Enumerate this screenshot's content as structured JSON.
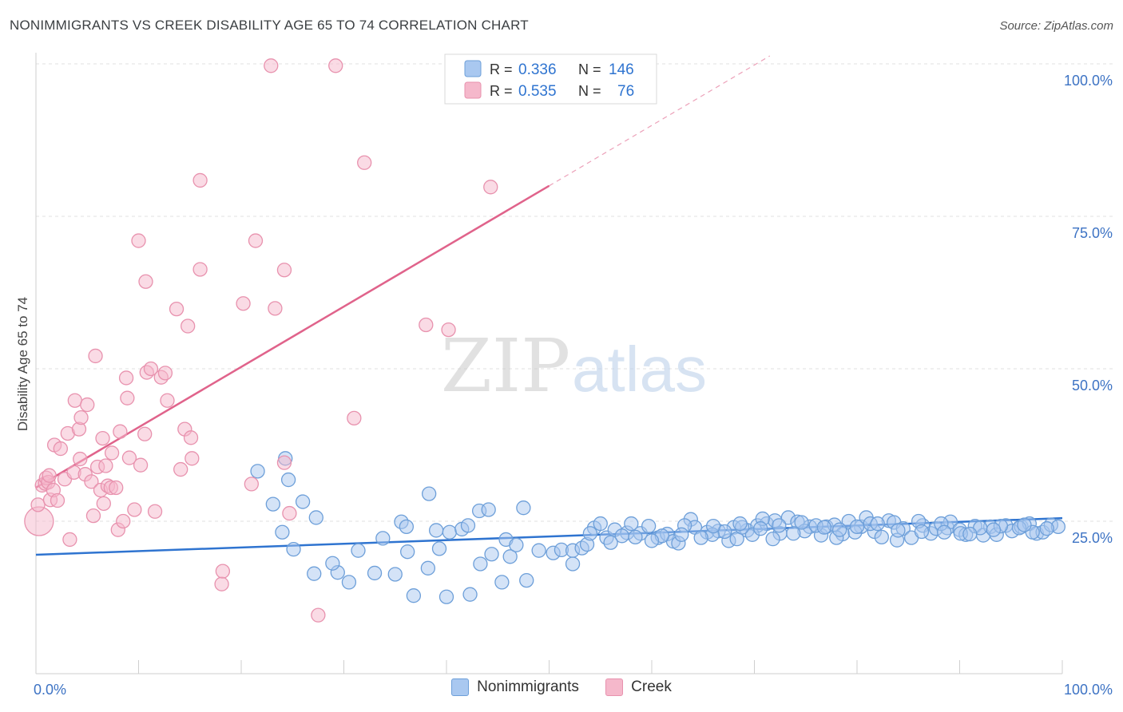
{
  "header": {
    "title": "NONIMMIGRANTS VS CREEK DISABILITY AGE 65 TO 74 CORRELATION CHART",
    "source": "Source: ZipAtlas.com"
  },
  "watermark": {
    "zip": "ZIP",
    "atlas": "atlas"
  },
  "colors": {
    "blue_fill": "#a9c8f0",
    "blue_stroke": "#6d9fd9",
    "blue_line": "#2f74d0",
    "pink_fill": "#f5b8cb",
    "pink_stroke": "#e892ae",
    "pink_line": "#e0638b",
    "axis_text": "#3d73c4",
    "grid": "#e2e2e2"
  },
  "legend_top": {
    "rows": [
      {
        "r_label": "R =",
        "r_value": "0.336",
        "n_label": "N =",
        "n_value": "146"
      },
      {
        "r_label": "R =",
        "r_value": "0.535",
        "n_label": "N =",
        "n_value": "76"
      }
    ]
  },
  "legend_bottom": {
    "items": [
      "Nonimmigrants",
      "Creek"
    ]
  },
  "chart_data": {
    "type": "scatter",
    "title": "NONIMMIGRANTS VS CREEK DISABILITY AGE 65 TO 74 CORRELATION CHART",
    "xlabel": "",
    "ylabel": "Disability Age 65 to 74",
    "xlim": [
      0,
      100
    ],
    "ylim": [
      0,
      100
    ],
    "x_tick_labels": [
      "0.0%",
      "100.0%"
    ],
    "y_tick_labels": [
      "25.0%",
      "50.0%",
      "75.0%",
      "100.0%"
    ],
    "y_ticks": [
      25,
      50,
      75,
      100
    ],
    "grid": true,
    "legend_position": "top-center",
    "series": [
      {
        "name": "Nonimmigrants",
        "r": 0.336,
        "n": 146,
        "trend": {
          "x": [
            0,
            100
          ],
          "y": [
            19.5,
            25.5
          ]
        },
        "points": [
          [
            21.6,
            33.2
          ],
          [
            24.3,
            35.3
          ],
          [
            23.1,
            27.8
          ],
          [
            24.6,
            31.8
          ],
          [
            26.0,
            28.2
          ],
          [
            27.3,
            25.6
          ],
          [
            24.0,
            23.2
          ],
          [
            25.1,
            20.4
          ],
          [
            27.1,
            16.4
          ],
          [
            29.4,
            16.6
          ],
          [
            30.5,
            15.0
          ],
          [
            28.9,
            18.1
          ],
          [
            31.4,
            20.2
          ],
          [
            33.0,
            16.5
          ],
          [
            35.0,
            16.3
          ],
          [
            36.8,
            12.8
          ],
          [
            36.2,
            20.0
          ],
          [
            38.2,
            17.3
          ],
          [
            39.3,
            20.5
          ],
          [
            40.0,
            12.6
          ],
          [
            42.3,
            13.0
          ],
          [
            43.3,
            18.0
          ],
          [
            44.4,
            19.6
          ],
          [
            45.4,
            15.0
          ],
          [
            46.2,
            19.2
          ],
          [
            47.8,
            15.3
          ],
          [
            33.8,
            22.2
          ],
          [
            35.6,
            24.9
          ],
          [
            36.1,
            24.1
          ],
          [
            38.3,
            29.5
          ],
          [
            39.0,
            23.5
          ],
          [
            40.3,
            23.2
          ],
          [
            41.5,
            23.7
          ],
          [
            42.1,
            24.3
          ],
          [
            43.2,
            26.7
          ],
          [
            44.1,
            26.9
          ],
          [
            45.8,
            22.0
          ],
          [
            46.8,
            21.1
          ],
          [
            47.5,
            27.2
          ],
          [
            49.0,
            20.2
          ],
          [
            50.4,
            19.8
          ],
          [
            51.2,
            20.3
          ],
          [
            52.3,
            20.2
          ],
          [
            53.2,
            20.6
          ],
          [
            52.3,
            18.0
          ],
          [
            53.7,
            21.2
          ],
          [
            54.4,
            23.9
          ],
          [
            55.6,
            22.3
          ],
          [
            56.4,
            23.6
          ],
          [
            57.6,
            23.1
          ],
          [
            58.0,
            24.6
          ],
          [
            58.9,
            23.0
          ],
          [
            60.6,
            22.3
          ],
          [
            61.5,
            22.9
          ],
          [
            62.1,
            21.7
          ],
          [
            62.6,
            21.4
          ],
          [
            63.8,
            25.3
          ],
          [
            64.2,
            24.0
          ],
          [
            65.4,
            23.2
          ],
          [
            66.5,
            23.4
          ],
          [
            67.5,
            21.8
          ],
          [
            68.0,
            24.0
          ],
          [
            68.3,
            22.1
          ],
          [
            69.3,
            23.5
          ],
          [
            70.3,
            24.3
          ],
          [
            71.2,
            24.6
          ],
          [
            72.0,
            25.1
          ],
          [
            72.5,
            23.0
          ],
          [
            73.3,
            25.6
          ],
          [
            74.2,
            24.9
          ],
          [
            75.4,
            24.1
          ],
          [
            76.5,
            22.7
          ],
          [
            77.0,
            24.1
          ],
          [
            77.8,
            24.4
          ],
          [
            78.6,
            22.9
          ],
          [
            79.2,
            25.0
          ],
          [
            80.4,
            24.1
          ],
          [
            80.9,
            25.6
          ],
          [
            81.7,
            23.3
          ],
          [
            82.4,
            22.4
          ],
          [
            83.1,
            25.1
          ],
          [
            83.6,
            24.8
          ],
          [
            84.5,
            23.8
          ],
          [
            85.3,
            22.3
          ],
          [
            86.4,
            24.3
          ],
          [
            87.2,
            23.0
          ],
          [
            87.7,
            23.8
          ],
          [
            88.8,
            23.9
          ],
          [
            89.1,
            24.9
          ],
          [
            90.0,
            23.6
          ],
          [
            90.6,
            22.8
          ],
          [
            91.5,
            24.2
          ],
          [
            92.3,
            22.7
          ],
          [
            93.0,
            24.1
          ],
          [
            93.6,
            22.8
          ],
          [
            94.5,
            24.3
          ],
          [
            95.1,
            23.4
          ],
          [
            96.0,
            24.1
          ],
          [
            96.8,
            24.6
          ],
          [
            97.5,
            23.0
          ],
          [
            98.1,
            23.2
          ],
          [
            98.9,
            24.4
          ],
          [
            99.6,
            24.1
          ],
          [
            74.9,
            23.4
          ],
          [
            76.0,
            24.3
          ],
          [
            78.0,
            22.3
          ],
          [
            79.8,
            23.2
          ],
          [
            81.3,
            24.6
          ],
          [
            83.9,
            21.9
          ],
          [
            86.0,
            25.0
          ],
          [
            88.2,
            24.6
          ],
          [
            90.1,
            23.0
          ],
          [
            92.0,
            23.9
          ],
          [
            94.0,
            24.2
          ],
          [
            95.8,
            23.9
          ],
          [
            97.1,
            23.2
          ],
          [
            73.8,
            23.0
          ],
          [
            71.8,
            22.1
          ],
          [
            70.8,
            25.4
          ],
          [
            69.8,
            22.8
          ],
          [
            68.8,
            24.0
          ],
          [
            67.1,
            23.3
          ],
          [
            65.9,
            22.8
          ],
          [
            64.8,
            22.3
          ],
          [
            63.2,
            24.3
          ],
          [
            61.0,
            22.6
          ],
          [
            59.7,
            24.2
          ],
          [
            57.1,
            22.6
          ],
          [
            55.0,
            24.6
          ],
          [
            54.0,
            23.0
          ],
          [
            56.0,
            21.5
          ],
          [
            58.4,
            22.4
          ],
          [
            60.0,
            21.8
          ],
          [
            62.9,
            22.8
          ],
          [
            66.0,
            24.2
          ],
          [
            68.6,
            24.6
          ],
          [
            70.6,
            23.8
          ],
          [
            72.4,
            24.3
          ],
          [
            74.6,
            24.8
          ],
          [
            76.8,
            24.0
          ],
          [
            78.3,
            23.6
          ],
          [
            80.0,
            24.1
          ],
          [
            82.0,
            24.6
          ],
          [
            84.0,
            23.5
          ],
          [
            86.3,
            23.3
          ],
          [
            88.5,
            23.2
          ],
          [
            91.0,
            22.9
          ],
          [
            93.3,
            23.6
          ],
          [
            96.3,
            24.4
          ],
          [
            98.5,
            23.8
          ]
        ]
      },
      {
        "name": "Creek",
        "r": 0.535,
        "n": 76,
        "trend": {
          "x": [
            0,
            50
          ],
          "y": [
            30.5,
            80.0
          ]
        },
        "trend_extension": {
          "x": [
            50,
            71.5
          ],
          "y": [
            80.0,
            101.3
          ]
        },
        "points": [
          [
            0.3,
            25.0
          ],
          [
            0.2,
            27.7
          ],
          [
            0.6,
            30.9
          ],
          [
            0.9,
            31.2
          ],
          [
            1.0,
            32.1
          ],
          [
            1.2,
            31.4
          ],
          [
            1.3,
            32.5
          ],
          [
            1.4,
            28.5
          ],
          [
            1.7,
            30.1
          ],
          [
            1.8,
            37.5
          ],
          [
            2.1,
            28.4
          ],
          [
            2.4,
            36.9
          ],
          [
            2.8,
            31.9
          ],
          [
            3.1,
            39.4
          ],
          [
            3.3,
            22.0
          ],
          [
            3.7,
            33.0
          ],
          [
            3.8,
            44.8
          ],
          [
            4.2,
            40.1
          ],
          [
            4.3,
            35.2
          ],
          [
            4.4,
            42.0
          ],
          [
            4.8,
            32.7
          ],
          [
            5.0,
            44.1
          ],
          [
            5.4,
            31.5
          ],
          [
            5.6,
            25.9
          ],
          [
            5.8,
            52.1
          ],
          [
            6.0,
            33.9
          ],
          [
            6.3,
            30.1
          ],
          [
            6.5,
            38.6
          ],
          [
            6.6,
            27.9
          ],
          [
            6.8,
            34.1
          ],
          [
            7.0,
            30.8
          ],
          [
            7.3,
            30.5
          ],
          [
            7.4,
            36.2
          ],
          [
            7.8,
            30.5
          ],
          [
            8.0,
            23.6
          ],
          [
            8.2,
            39.7
          ],
          [
            8.5,
            25.0
          ],
          [
            8.8,
            48.5
          ],
          [
            8.9,
            45.2
          ],
          [
            9.1,
            35.4
          ],
          [
            9.6,
            26.9
          ],
          [
            10.0,
            71.0
          ],
          [
            10.2,
            34.2
          ],
          [
            10.6,
            39.3
          ],
          [
            10.7,
            64.3
          ],
          [
            10.8,
            49.4
          ],
          [
            11.2,
            50.0
          ],
          [
            11.6,
            26.6
          ],
          [
            12.2,
            48.6
          ],
          [
            12.6,
            49.3
          ],
          [
            12.8,
            44.8
          ],
          [
            13.7,
            59.8
          ],
          [
            14.5,
            40.1
          ],
          [
            14.8,
            57.0
          ],
          [
            15.1,
            38.7
          ],
          [
            15.2,
            35.3
          ],
          [
            16.0,
            80.9
          ],
          [
            16.0,
            66.3
          ],
          [
            18.1,
            14.7
          ],
          [
            18.2,
            16.8
          ],
          [
            20.2,
            60.7
          ],
          [
            21.4,
            71.0
          ],
          [
            21.0,
            31.1
          ],
          [
            22.9,
            99.7
          ],
          [
            23.3,
            59.9
          ],
          [
            24.2,
            66.2
          ],
          [
            24.2,
            34.6
          ],
          [
            24.7,
            26.3
          ],
          [
            27.5,
            9.6
          ],
          [
            29.2,
            99.7
          ],
          [
            31.0,
            41.9
          ],
          [
            32.0,
            83.8
          ],
          [
            38.0,
            57.2
          ],
          [
            40.2,
            56.4
          ],
          [
            44.3,
            79.8
          ],
          [
            14.1,
            33.5
          ]
        ]
      }
    ]
  }
}
